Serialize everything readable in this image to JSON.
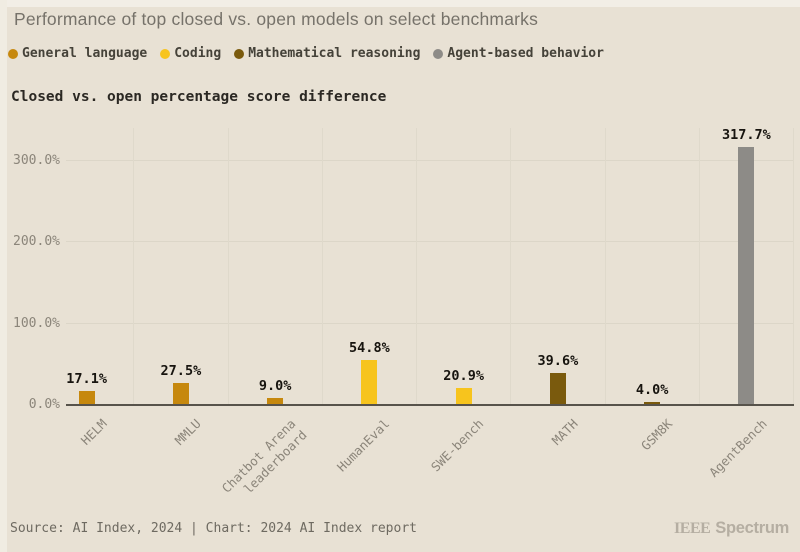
{
  "title": "Performance of top closed vs. open models on select benchmarks",
  "subtitle": "Closed vs. open percentage score difference",
  "legend": {
    "items": [
      {
        "label": "General language",
        "color": "#C6880E"
      },
      {
        "label": "Coding",
        "color": "#F7C41D"
      },
      {
        "label": "Mathematical reasoning",
        "color": "#7A5A0D"
      },
      {
        "label": "Agent-based behavior",
        "color": "#8D8B87"
      }
    ]
  },
  "chart_data": {
    "type": "bar",
    "title": "Closed vs. open percentage score difference",
    "categories": [
      "HELM",
      "MMLU",
      "Chatbot Arena\nleaderboard",
      "HumanEval",
      "SWE-bench",
      "MATH",
      "GSM8K",
      "AgentBench"
    ],
    "values": [
      17.1,
      27.5,
      9.0,
      54.8,
      20.9,
      39.6,
      4.0,
      317.7
    ],
    "value_labels": [
      "17.1%",
      "27.5%",
      "9.0%",
      "54.8%",
      "20.9%",
      "39.6%",
      "4.0%",
      "317.7%"
    ],
    "bar_groups": [
      "General language",
      "General language",
      "General language",
      "Coding",
      "Coding",
      "Mathematical reasoning",
      "Mathematical reasoning",
      "Agent-based behavior"
    ],
    "series_colors": [
      "#C6880E",
      "#C6880E",
      "#C6880E",
      "#F7C41D",
      "#F7C41D",
      "#7A5A0D",
      "#7A5A0D",
      "#8D8B87"
    ],
    "y_ticks": [
      "0.0%",
      "100.0%",
      "200.0%",
      "300.0%"
    ],
    "y_tick_values": [
      0,
      100,
      200,
      300
    ],
    "ylim": [
      0,
      340
    ],
    "xlabel": "",
    "ylabel": "",
    "grid": true,
    "legend_position": "top"
  },
  "footer": {
    "source_line": "Source: AI Index, 2024 | Chart: 2024 AI Index report",
    "brand": {
      "ieee": "IEEE",
      "spectrum": "Spectrum"
    }
  },
  "theme": {
    "background": "#E8E1D4",
    "title_color": "#76726A",
    "text_dark": "#2B2823",
    "axis_text": "#8B857A",
    "gridline": "#DCD6C8",
    "baseline": "#57534B"
  }
}
